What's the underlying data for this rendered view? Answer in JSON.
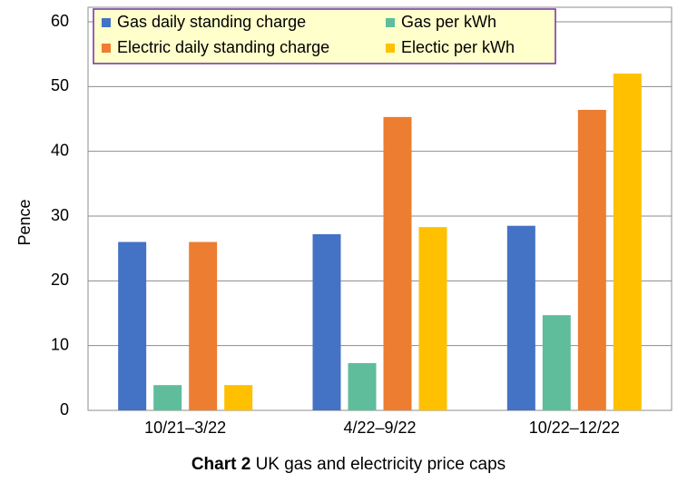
{
  "chart_data": {
    "type": "bar",
    "figure_label": "Chart 2",
    "title": "UK gas and electricity price caps",
    "y_label": "Pence",
    "categories": [
      "10/21–3/22",
      "4/22–9/22",
      "10/22–12/22"
    ],
    "series": [
      {
        "name": "Gas daily standing charge",
        "color": "#4472c4",
        "values": [
          26,
          27.2,
          28.5
        ]
      },
      {
        "name": "Gas per kWh",
        "color": "#5fbd9b",
        "values": [
          3.9,
          7.3,
          14.7
        ]
      },
      {
        "name": "Electric daily standing charge",
        "color": "#ed7d31",
        "values": [
          26,
          45.3,
          46.4
        ]
      },
      {
        "name": "Electic per kWh",
        "color": "#ffc000",
        "values": [
          3.9,
          28.3,
          52
        ]
      }
    ],
    "ylim": [
      0,
      60
    ],
    "yticks": [
      0,
      10,
      20,
      30,
      40,
      50,
      60
    ],
    "grid": true
  }
}
